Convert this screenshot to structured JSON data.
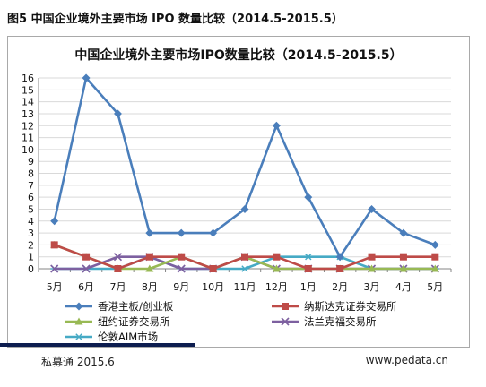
{
  "figure_caption": "图5 中国企业境外主要市场 IPO 数量比较（2014.5-2015.5）",
  "footer": {
    "source": "私募通 2015.6",
    "website": "www.pedata.cn"
  },
  "colors": {
    "border": "#a9a9a9",
    "grid": "#d9d9d9",
    "caption_rule": "#7fa6cf",
    "footer_bar": "#0d1d4f"
  },
  "chart_data": {
    "type": "line",
    "title": "中国企业境外主要市场IPO数量比较（2014.5-2015.5）",
    "xlabel": "",
    "ylabel": "",
    "ylim": [
      0,
      16
    ],
    "yticks": [
      "0",
      "1",
      "2",
      "3",
      "4",
      "5",
      "6",
      "7",
      "8",
      "9",
      "10",
      "11",
      "12",
      "13",
      "14",
      "15",
      "16"
    ],
    "categories": [
      "5月",
      "6月",
      "7月",
      "8月",
      "9月",
      "10月",
      "11月",
      "12月",
      "1月",
      "2月",
      "3月",
      "4月",
      "5月"
    ],
    "grid": true,
    "legend_position": "bottom",
    "series": [
      {
        "name": "香港主板/创业板",
        "color": "#4a7ebb",
        "marker": "diamond",
        "values": [
          4,
          16,
          13,
          3,
          3,
          3,
          5,
          12,
          6,
          1,
          5,
          3,
          2
        ]
      },
      {
        "name": "纳斯达克证券交易所",
        "color": "#be4b48",
        "marker": "square",
        "values": [
          2,
          1,
          0,
          1,
          1,
          0,
          1,
          1,
          0,
          0,
          1,
          1,
          1
        ]
      },
      {
        "name": "纽约证券交易所",
        "color": "#98b954",
        "marker": "triangle",
        "values": [
          2,
          1,
          0,
          0,
          1,
          0,
          1,
          0,
          0,
          0,
          0,
          0,
          0
        ]
      },
      {
        "name": "法兰克福交易所",
        "color": "#7d60a0",
        "marker": "x",
        "values": [
          0,
          0,
          1,
          1,
          0,
          0,
          1,
          0,
          0,
          0,
          0,
          0,
          0
        ]
      },
      {
        "name": "伦敦AIM市场",
        "color": "#46aac5",
        "marker": "star",
        "values": [
          0,
          0,
          0,
          1,
          0,
          0,
          0,
          1,
          1,
          1,
          0,
          0,
          0
        ]
      }
    ]
  }
}
